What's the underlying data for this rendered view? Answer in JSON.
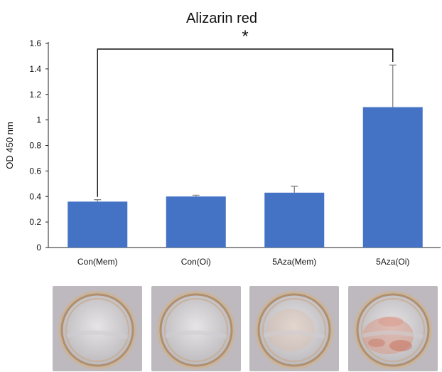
{
  "chart_data": {
    "type": "bar",
    "title": "Alizarin red",
    "xlabel": "",
    "ylabel": "OD 450 nm",
    "categories": [
      "Con(Mem)",
      "Con(Oi)",
      "5Aza(Mem)",
      "5Aza(Oi)"
    ],
    "values": [
      0.36,
      0.4,
      0.43,
      1.1
    ],
    "error_bars": [
      0.015,
      0.01,
      0.05,
      0.33
    ],
    "ylim": [
      0,
      1.6
    ],
    "yticks": [
      0,
      0.2,
      0.4,
      0.6,
      0.8,
      1,
      1.2,
      1.4,
      1.6
    ],
    "ytick_labels": [
      "0",
      "0.2",
      "0.4",
      "0.6",
      "0.8",
      "1",
      "1.2",
      "1.4",
      "1.6"
    ],
    "grid": false,
    "significance": {
      "from": 0,
      "to": 3,
      "label": "*"
    },
    "bar_color": "#4472C4",
    "error_color": "#7f7f7f"
  },
  "photos": [
    {
      "name": "con-mem-well-photo",
      "stain": "none"
    },
    {
      "name": "con-oi-well-photo",
      "stain": "none"
    },
    {
      "name": "5aza-mem-well-photo",
      "stain": "faint"
    },
    {
      "name": "5aza-oi-well-photo",
      "stain": "red"
    }
  ]
}
